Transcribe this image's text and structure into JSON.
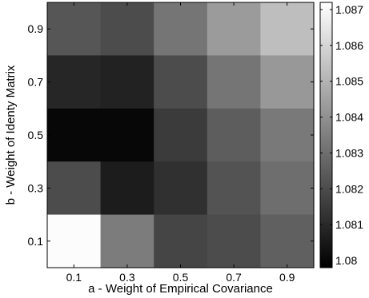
{
  "chart_data": {
    "type": "heatmap",
    "title": "",
    "xlabel": "a - Weight of Empirical Covariance",
    "ylabel": "b - Weight of Identy Matrix",
    "x": [
      "0.1",
      "0.3",
      "0.5",
      "0.7",
      "0.9"
    ],
    "y": [
      "0.9",
      "0.7",
      "0.5",
      "0.3",
      "0.1"
    ],
    "values": [
      [
        1.0823,
        1.082,
        1.0832,
        1.0843,
        1.0853
      ],
      [
        1.0809,
        1.0808,
        1.082,
        1.0832,
        1.0842
      ],
      [
        1.08,
        1.08,
        1.0815,
        1.0825,
        1.0833
      ],
      [
        1.082,
        1.0806,
        1.0812,
        1.0822,
        1.083
      ],
      [
        1.0871,
        1.0834,
        1.0818,
        1.082,
        1.0826
      ]
    ],
    "colormap": "gray",
    "colorbar": {
      "min": 1.0798,
      "max": 1.0872,
      "ticks": [
        "1.08",
        "1.081",
        "1.082",
        "1.083",
        "1.084",
        "1.085",
        "1.086",
        "1.087"
      ]
    }
  }
}
